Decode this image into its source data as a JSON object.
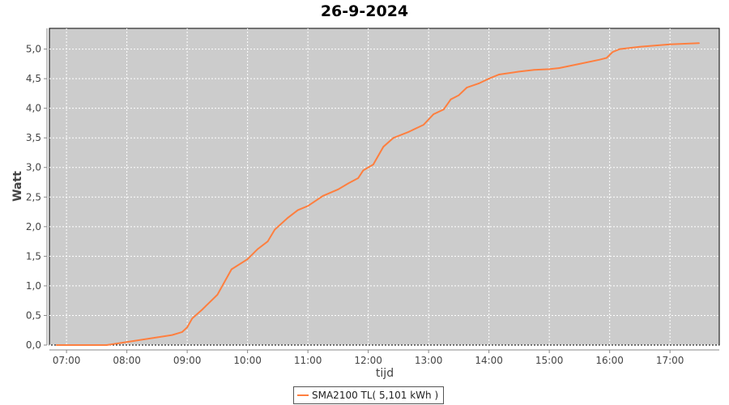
{
  "chart_data": {
    "type": "line",
    "title": "26-9-2024",
    "xlabel": "tijd",
    "ylabel": "Watt",
    "xlim": [
      "06:43",
      "17:49"
    ],
    "ylim": [
      0,
      5.35
    ],
    "x_ticks": [
      "07:00",
      "08:00",
      "09:00",
      "10:00",
      "11:00",
      "12:00",
      "13:00",
      "14:00",
      "15:00",
      "16:00",
      "17:00"
    ],
    "y_ticks": [
      "0,0",
      "0,5",
      "1,0",
      "1,5",
      "2,0",
      "2,5",
      "3,0",
      "3,5",
      "4,0",
      "4,5",
      "5,0"
    ],
    "grid": true,
    "legend_position": "bottom",
    "background": "#cccccc",
    "series": [
      {
        "name": "SMA2100 TL( 5,101 kWh )",
        "color": "#ff7f3f",
        "x": [
          "06:50",
          "07:40",
          "08:00",
          "08:15",
          "08:30",
          "08:45",
          "08:55",
          "09:00",
          "09:05",
          "09:15",
          "09:30",
          "09:44",
          "10:00",
          "10:10",
          "10:20",
          "10:27",
          "10:40",
          "10:50",
          "11:00",
          "11:15",
          "11:30",
          "11:40",
          "11:50",
          "11:55",
          "12:05",
          "12:15",
          "12:25",
          "12:40",
          "12:55",
          "13:05",
          "13:15",
          "13:22",
          "13:30",
          "13:38",
          "13:50",
          "14:00",
          "14:10",
          "14:30",
          "14:45",
          "15:00",
          "15:10",
          "15:30",
          "15:50",
          "15:57",
          "16:03",
          "16:10",
          "16:30",
          "17:00",
          "17:29"
        ],
        "y": [
          0,
          0,
          0.05,
          0.09,
          0.13,
          0.17,
          0.22,
          0.3,
          0.45,
          0.6,
          0.85,
          1.28,
          1.45,
          1.62,
          1.75,
          1.95,
          2.15,
          2.28,
          2.35,
          2.52,
          2.63,
          2.73,
          2.82,
          2.95,
          3.05,
          3.35,
          3.5,
          3.6,
          3.72,
          3.9,
          3.98,
          4.15,
          4.22,
          4.35,
          4.42,
          4.5,
          4.57,
          4.62,
          4.65,
          4.66,
          4.68,
          4.75,
          4.82,
          4.85,
          4.95,
          5.0,
          5.04,
          5.08,
          5.1
        ]
      }
    ]
  }
}
